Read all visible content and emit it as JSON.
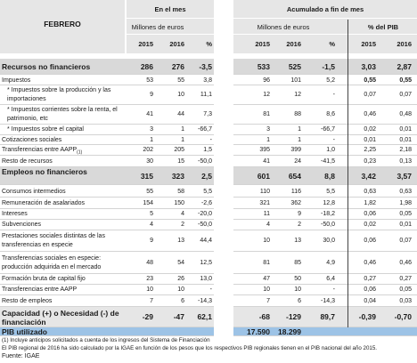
{
  "header": {
    "title": "FEBRERO",
    "groups": [
      "En el mes",
      "Acumulado a fin de mes"
    ],
    "units": [
      "Millones de euros",
      "Millones de euros",
      "% del PIB"
    ],
    "columns": [
      "2015",
      "2016",
      "%",
      "2015",
      "2016",
      "%",
      "2015",
      "2016"
    ]
  },
  "table": {
    "rows": [
      {
        "label": "Recursos no financieros",
        "cells": [
          "286",
          "276",
          "-3,5",
          "533",
          "525",
          "-1,5",
          "3,03",
          "2,87"
        ]
      },
      {
        "label": "Impuestos",
        "cells": [
          "53",
          "55",
          "3,8",
          "96",
          "101",
          "5,2",
          "0,55",
          "0,55"
        ]
      },
      {
        "label": "* Impuestos sobre la producción y las importaciones",
        "cells": [
          "9",
          "10",
          "11,1",
          "12",
          "12",
          "-",
          "0,07",
          "0,07"
        ]
      },
      {
        "label": "* Impuestos corrientes sobre la renta, el patrimonio, etc",
        "cells": [
          "41",
          "44",
          "7,3",
          "81",
          "88",
          "8,6",
          "0,46",
          "0,48"
        ]
      },
      {
        "label": "* Impuestos sobre el capital",
        "cells": [
          "3",
          "1",
          "-66,7",
          "3",
          "1",
          "-66,7",
          "0,02",
          "0,01"
        ]
      },
      {
        "label": "Cotizaciones sociales",
        "cells": [
          "1",
          "1",
          "-",
          "1",
          "1",
          "-",
          "0,01",
          "0,01"
        ]
      },
      {
        "label": "Transferencias entre AAPP",
        "note_ref": "(1)",
        "cells": [
          "202",
          "205",
          "1,5",
          "395",
          "399",
          "1,0",
          "2,25",
          "2,18"
        ]
      },
      {
        "label": "Resto de recursos",
        "cells": [
          "30",
          "15",
          "-50,0",
          "41",
          "24",
          "-41,5",
          "0,23",
          "0,13"
        ]
      },
      {
        "label": "Empleos no financieros",
        "cells": [
          "315",
          "323",
          "2,5",
          "601",
          "654",
          "8,8",
          "3,42",
          "3,57"
        ]
      },
      {
        "label": "Consumos intermedios",
        "cells": [
          "55",
          "58",
          "5,5",
          "110",
          "116",
          "5,5",
          "0,63",
          "0,63"
        ]
      },
      {
        "label": "Remuneración de asalariados",
        "cells": [
          "154",
          "150",
          "-2,6",
          "321",
          "362",
          "12,8",
          "1,82",
          "1,98"
        ]
      },
      {
        "label": "Intereses",
        "cells": [
          "5",
          "4",
          "-20,0",
          "11",
          "9",
          "-18,2",
          "0,06",
          "0,05"
        ]
      },
      {
        "label": "Subvenciones",
        "cells": [
          "4",
          "2",
          "-50,0",
          "4",
          "2",
          "-50,0",
          "0,02",
          "0,01"
        ]
      },
      {
        "label": "Prestaciones sociales distintas de las transferencias en especie",
        "cells": [
          "9",
          "13",
          "44,4",
          "10",
          "13",
          "30,0",
          "0,06",
          "0,07"
        ]
      },
      {
        "label": "Transferencias sociales en especie: producción adquirida en el mercado",
        "cells": [
          "48",
          "54",
          "12,5",
          "81",
          "85",
          "4,9",
          "0,46",
          "0,46"
        ]
      },
      {
        "label": "Formación bruta de capital fijo",
        "cells": [
          "23",
          "26",
          "13,0",
          "47",
          "50",
          "6,4",
          "0,27",
          "0,27"
        ]
      },
      {
        "label": "Transferencias entre AAPP",
        "cells": [
          "10",
          "10",
          "-",
          "10",
          "10",
          "-",
          "0,06",
          "0,05"
        ]
      },
      {
        "label": "Resto de empleos",
        "cells": [
          "7",
          "6",
          "-14,3",
          "7",
          "6",
          "-14,3",
          "0,04",
          "0,03"
        ]
      },
      {
        "label": "Capacidad (+) o Necesidad (-) de financiación",
        "cells": [
          "-29",
          "-47",
          "62,1",
          "-68",
          "-129",
          "89,7",
          "-0,39",
          "-0,70"
        ]
      },
      {
        "label": "PIB utilizado",
        "cells": [
          null,
          null,
          null,
          "17.590",
          "18.299",
          null,
          null,
          null
        ]
      }
    ]
  },
  "footnotes": [
    "(1) Incluye anticipos solicitados a cuenta de los ingresos del Sistema de Financiación",
    "El PIB regional de 2016 ha sido calculado por la IGAE en función de los pesos que los respectivos PIB regionales tienen en el PIB nacional del año 2015.",
    "Fuente: IGAE"
  ]
}
